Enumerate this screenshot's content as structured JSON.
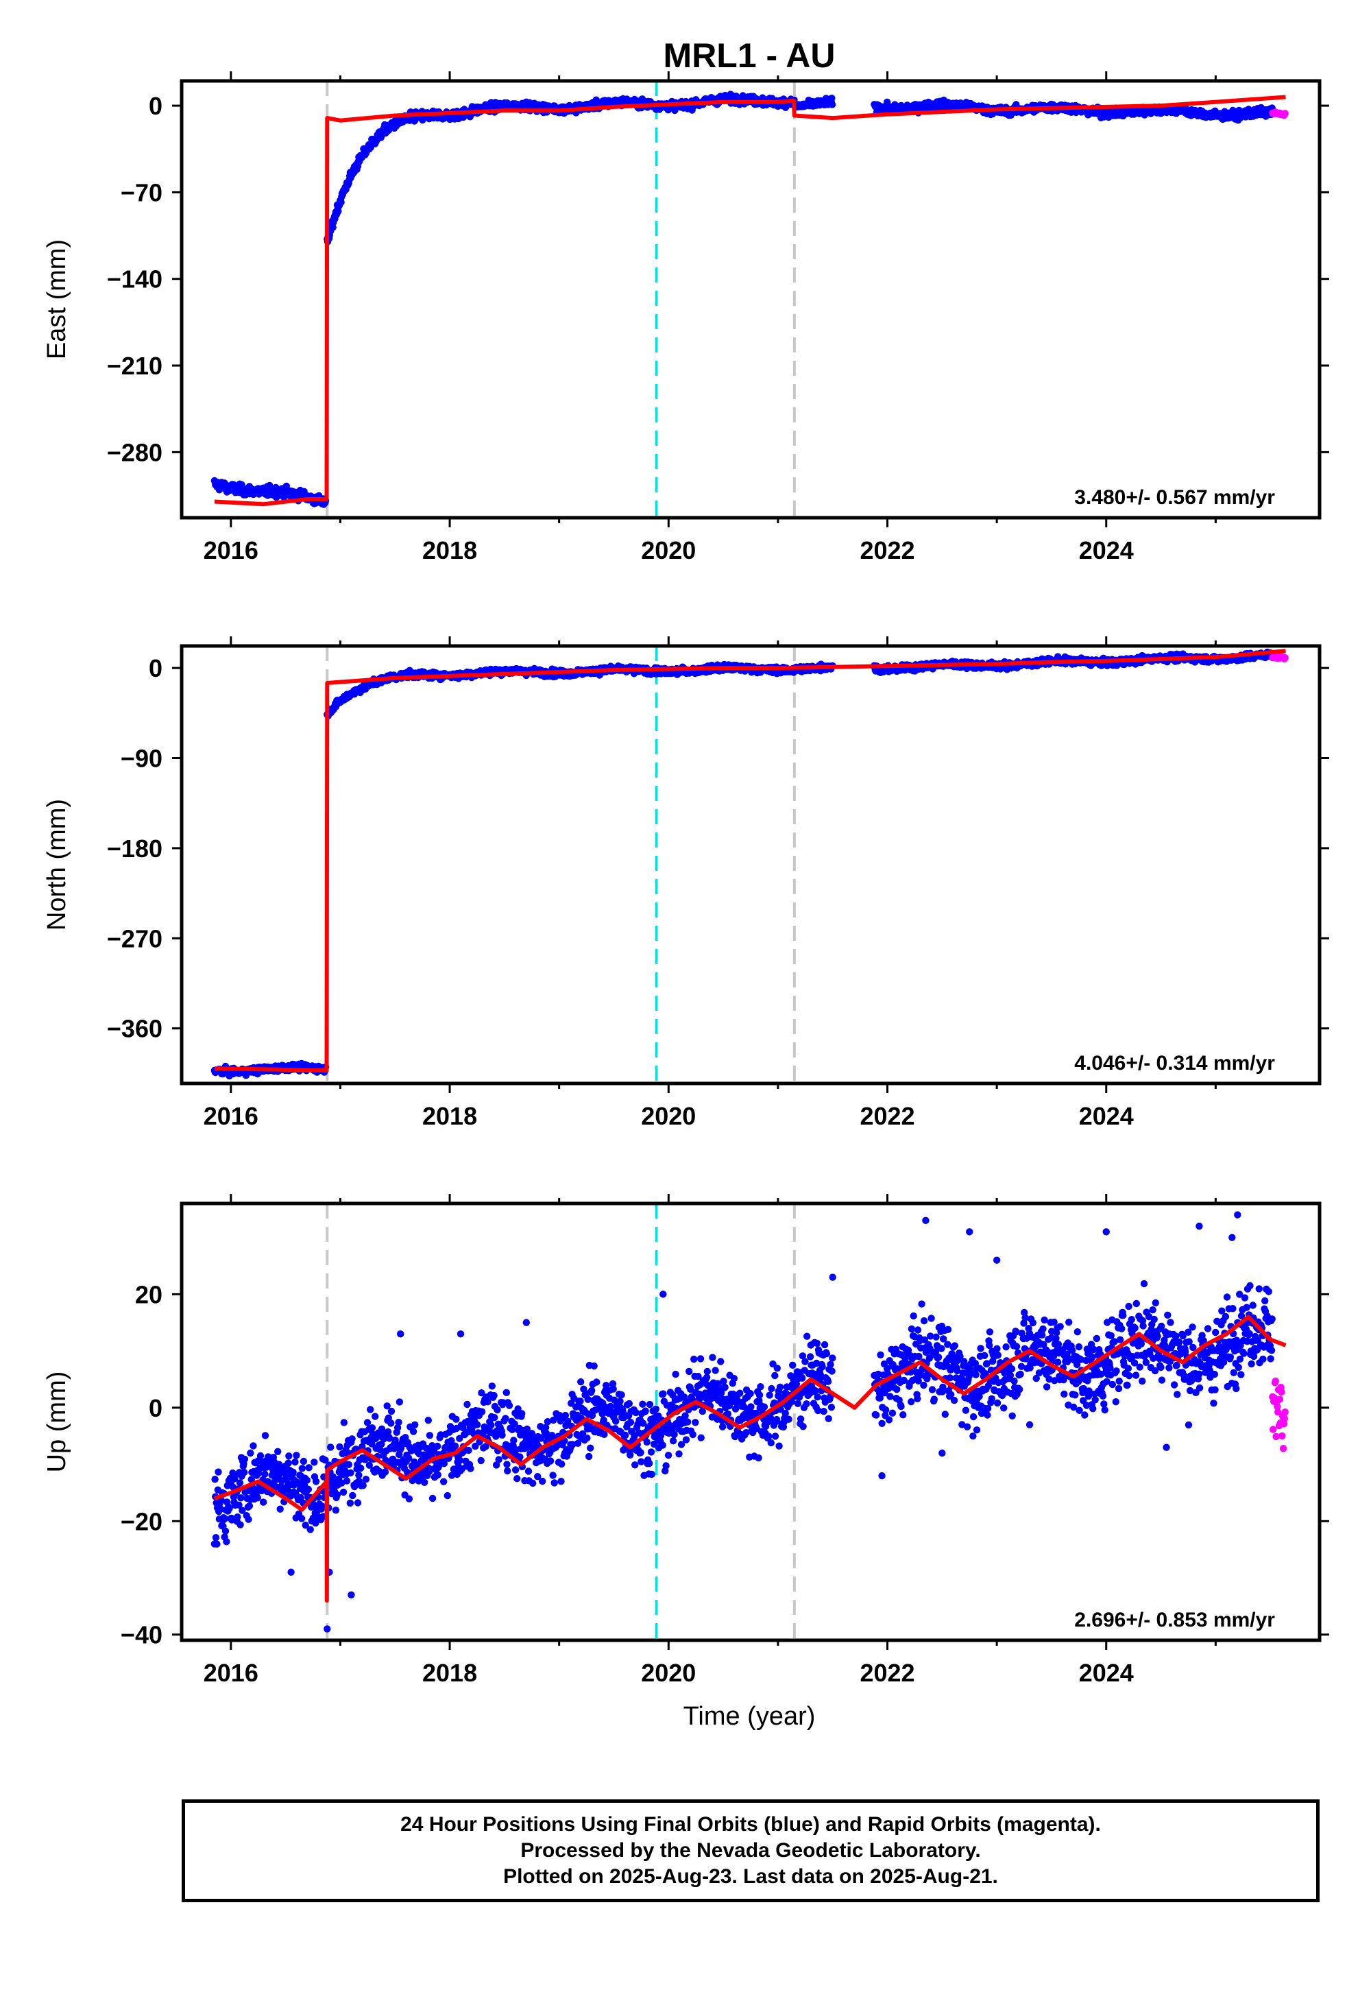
{
  "title": "MRL1 - AU",
  "x_axis_label": "Time (year)",
  "footer": {
    "line1": "24 Hour Positions Using Final Orbits (blue) and Rapid Orbits (magenta).",
    "line2": "Processed by the Nevada Geodetic Laboratory.",
    "line3": "Plotted on 2025-Aug-23. Last data on 2025-Aug-21."
  },
  "colors": {
    "final_points": "#0000ff",
    "rapid_points": "#ff00ff",
    "model_line": "#ff0000",
    "equipment_change": "#c8c8c8",
    "earthquake": "#00e0e0",
    "background": "#ffffff",
    "frame": "#000000"
  },
  "chart_data": [
    {
      "type": "scatter",
      "component": "East",
      "ylabel": "East (mm)",
      "xlim": [
        2015.55,
        2025.95
      ],
      "ylim": [
        -333,
        20
      ],
      "xticks": [
        2016,
        2018,
        2020,
        2022,
        2024
      ],
      "yticks": [
        0,
        -70,
        -140,
        -210,
        -280
      ],
      "rate": "3.480+/- 0.567 mm/yr",
      "equipment_changes": [
        2016.88,
        2021.15
      ],
      "earthquakes": [
        2019.89
      ],
      "segments": [
        {
          "t0": 2015.85,
          "t1": 2016.87,
          "y0": -305,
          "y1": -320,
          "kind": "flat",
          "noise": 3
        },
        {
          "t0": 2016.88,
          "t1": 2018.2,
          "y0": -110,
          "y1": -3,
          "kind": "relax",
          "tau": 0.3,
          "noise": 3
        },
        {
          "t0": 2018.2,
          "t1": 2021.15,
          "y0": -3,
          "y1": 5,
          "kind": "flat",
          "noise": 2.5
        },
        {
          "t0": 2021.15,
          "t1": 2021.5,
          "y0": 1,
          "y1": 1,
          "kind": "flat",
          "noise": 2
        },
        {
          "t0": 2021.88,
          "t1": 2025.52,
          "y0": 0,
          "y1": -7,
          "kind": "flat",
          "noise": 2.5
        }
      ],
      "rapid": {
        "t0": 2025.52,
        "t1": 2025.64,
        "y0": -6,
        "y1": -7
      },
      "model": [
        [
          2015.85,
          -320
        ],
        [
          2016.3,
          -322
        ],
        [
          2016.7,
          -318
        ],
        [
          2016.875,
          -318
        ],
        [
          2016.88,
          -10
        ],
        [
          2017.0,
          -12
        ],
        [
          2017.5,
          -8
        ],
        [
          2018.0,
          -6
        ],
        [
          2018.5,
          -4
        ],
        [
          2019.0,
          -4
        ],
        [
          2019.5,
          -1
        ],
        [
          2020.0,
          1
        ],
        [
          2020.5,
          3
        ],
        [
          2021.0,
          3
        ],
        [
          2021.145,
          4
        ],
        [
          2021.15,
          -8
        ],
        [
          2021.5,
          -10
        ],
        [
          2022.0,
          -7
        ],
        [
          2022.5,
          -5
        ],
        [
          2023.0,
          -3
        ],
        [
          2023.5,
          -2
        ],
        [
          2024.0,
          -1
        ],
        [
          2024.5,
          0
        ],
        [
          2025.0,
          3
        ],
        [
          2025.64,
          7
        ]
      ],
      "seasonal_amp": 2
    },
    {
      "type": "scatter",
      "component": "North",
      "ylabel": "North (mm)",
      "xlim": [
        2015.55,
        2025.95
      ],
      "ylim": [
        -415,
        22
      ],
      "xticks": [
        2016,
        2018,
        2020,
        2022,
        2024
      ],
      "yticks": [
        0,
        -90,
        -180,
        -270,
        -360
      ],
      "rate": "4.046+/- 0.314 mm/yr",
      "equipment_changes": [
        2016.88,
        2021.15
      ],
      "earthquakes": [
        2019.89
      ],
      "segments": [
        {
          "t0": 2015.85,
          "t1": 2016.87,
          "y0": -402,
          "y1": -400,
          "kind": "flat",
          "noise": 2.5
        },
        {
          "t0": 2016.88,
          "t1": 2018.2,
          "y0": -45,
          "y1": -5,
          "kind": "relax",
          "tau": 0.3,
          "noise": 2.5
        },
        {
          "t0": 2018.2,
          "t1": 2021.5,
          "y0": -5,
          "y1": 0,
          "kind": "flat",
          "noise": 2.5
        },
        {
          "t0": 2021.88,
          "t1": 2025.52,
          "y0": 0,
          "y1": 12,
          "kind": "flat",
          "noise": 2.5
        }
      ],
      "rapid": {
        "t0": 2025.52,
        "t1": 2025.64,
        "y0": 11,
        "y1": 10
      },
      "model": [
        [
          2015.85,
          -400
        ],
        [
          2016.875,
          -402
        ],
        [
          2016.88,
          -15
        ],
        [
          2017.5,
          -10
        ],
        [
          2018.0,
          -8
        ],
        [
          2018.5,
          -6
        ],
        [
          2019.0,
          -4
        ],
        [
          2019.5,
          -2
        ],
        [
          2020.0,
          -1
        ],
        [
          2020.5,
          0
        ],
        [
          2021.0,
          0
        ],
        [
          2021.5,
          1
        ],
        [
          2022.0,
          2
        ],
        [
          2022.5,
          3
        ],
        [
          2023.0,
          4
        ],
        [
          2023.5,
          6
        ],
        [
          2024.0,
          7
        ],
        [
          2024.5,
          9
        ],
        [
          2025.0,
          11
        ],
        [
          2025.64,
          17
        ]
      ],
      "seasonal_amp": 1.5
    },
    {
      "type": "scatter",
      "component": "Up",
      "ylabel": "Up (mm)",
      "xlim": [
        2015.55,
        2025.95
      ],
      "ylim": [
        -41,
        36
      ],
      "xticks": [
        2016,
        2018,
        2020,
        2022,
        2024
      ],
      "yticks": [
        20,
        0,
        -20,
        -40
      ],
      "rate": "2.696+/- 0.853 mm/yr",
      "equipment_changes": [
        2016.88,
        2021.15
      ],
      "earthquakes": [
        2019.89
      ],
      "segments": [
        {
          "t0": 2015.85,
          "t1": 2016.87,
          "y0": -15,
          "y1": -13,
          "kind": "seasonal",
          "noise": 5
        },
        {
          "t0": 2016.88,
          "t1": 2021.5,
          "y0": -10,
          "y1": 3,
          "kind": "seasonal",
          "noise": 5
        },
        {
          "t0": 2021.88,
          "t1": 2025.52,
          "y0": 5,
          "y1": 12,
          "kind": "seasonal",
          "noise": 5.5
        }
      ],
      "rapid": {
        "t0": 2025.52,
        "t1": 2025.64,
        "y0": 2,
        "y1": -3,
        "spread": 12
      },
      "model": [
        [
          2015.85,
          -16
        ],
        [
          2016.0,
          -15
        ],
        [
          2016.25,
          -13
        ],
        [
          2016.5,
          -16
        ],
        [
          2016.65,
          -18
        ],
        [
          2016.875,
          -13
        ],
        [
          2016.877,
          -34
        ],
        [
          2016.88,
          -11
        ],
        [
          2017.0,
          -9.5
        ],
        [
          2017.2,
          -7.5
        ],
        [
          2017.4,
          -10
        ],
        [
          2017.6,
          -12.5
        ],
        [
          2017.85,
          -9
        ],
        [
          2018.05,
          -8
        ],
        [
          2018.25,
          -5
        ],
        [
          2018.45,
          -7
        ],
        [
          2018.65,
          -10
        ],
        [
          2018.85,
          -7
        ],
        [
          2019.05,
          -5
        ],
        [
          2019.25,
          -2
        ],
        [
          2019.45,
          -4
        ],
        [
          2019.65,
          -7
        ],
        [
          2019.85,
          -4
        ],
        [
          2020.05,
          -1
        ],
        [
          2020.25,
          1
        ],
        [
          2020.45,
          -1
        ],
        [
          2020.65,
          -3.5
        ],
        [
          2020.85,
          -1.5
        ],
        [
          2021.05,
          1
        ],
        [
          2021.3,
          5
        ],
        [
          2021.5,
          2.5
        ],
        [
          2021.7,
          0
        ],
        [
          2021.9,
          4
        ],
        [
          2022.1,
          6
        ],
        [
          2022.3,
          8
        ],
        [
          2022.5,
          5
        ],
        [
          2022.7,
          2.5
        ],
        [
          2022.9,
          5
        ],
        [
          2023.1,
          8
        ],
        [
          2023.3,
          10
        ],
        [
          2023.5,
          7.5
        ],
        [
          2023.7,
          5.5
        ],
        [
          2023.9,
          8
        ],
        [
          2024.1,
          10.5
        ],
        [
          2024.3,
          13
        ],
        [
          2024.5,
          10
        ],
        [
          2024.7,
          8
        ],
        [
          2024.9,
          11
        ],
        [
          2025.1,
          13
        ],
        [
          2025.3,
          16
        ],
        [
          2025.5,
          12
        ],
        [
          2025.64,
          11
        ]
      ],
      "outliers": [
        [
          2016.88,
          -39
        ],
        [
          2022.35,
          33
        ],
        [
          2022.75,
          31
        ],
        [
          2025.2,
          34
        ],
        [
          2024.85,
          32
        ],
        [
          2024.0,
          31
        ],
        [
          2025.15,
          30
        ],
        [
          2023.0,
          26
        ],
        [
          2021.5,
          23
        ],
        [
          2019.95,
          20
        ],
        [
          2017.1,
          -33
        ],
        [
          2016.9,
          -29
        ],
        [
          2016.55,
          -29
        ],
        [
          2021.95,
          -12
        ],
        [
          2022.5,
          -8
        ],
        [
          2023.3,
          -3
        ],
        [
          2024.55,
          -7
        ],
        [
          2017.55,
          13
        ],
        [
          2018.1,
          13
        ],
        [
          2018.7,
          15
        ]
      ]
    }
  ]
}
